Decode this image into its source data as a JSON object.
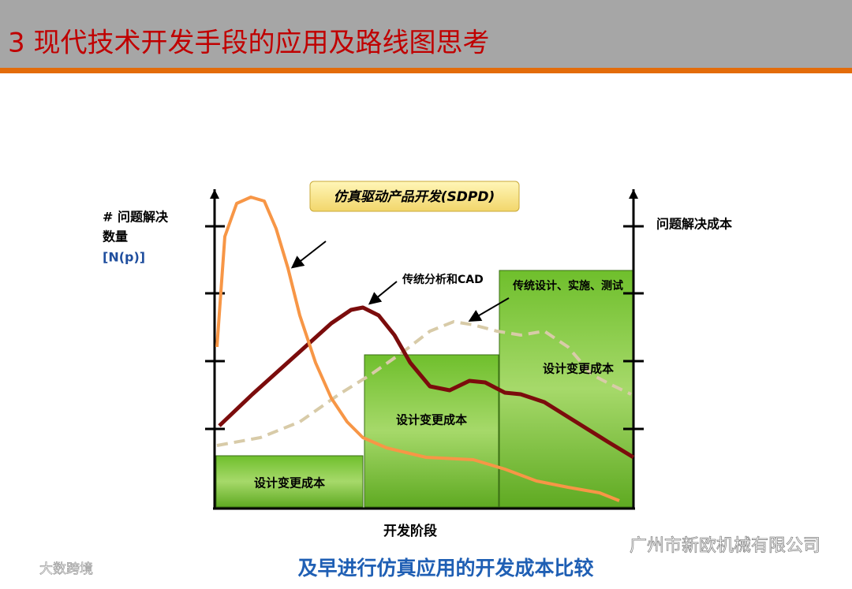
{
  "header": {
    "title": "3  现代技术开发手段的应用及路线图思考"
  },
  "diagram": {
    "banner": "仿真驱动产品开发(SDPD)",
    "left_axis_label": [
      "# 问题解决",
      "数量",
      "[N(p)]"
    ],
    "right_axis_label": "问题解决成本",
    "annotations": [
      "传统分析和CAD",
      "传统设计、实施、测试"
    ],
    "blocks": [
      "设计变更成本",
      "设计变更成本",
      "设计变更成本"
    ],
    "x_axis_label": "开发阶段"
  },
  "caption": "及早进行仿真应用的开发成本比较",
  "watermarks": [
    "广州市新欧机械有限公司",
    "大数跨境"
  ]
}
